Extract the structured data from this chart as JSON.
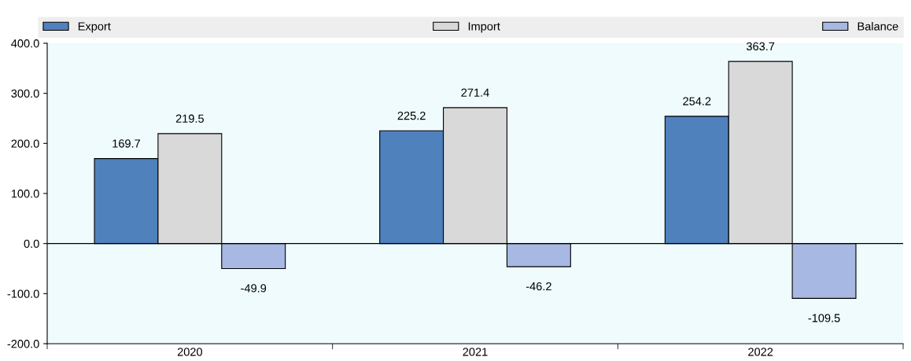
{
  "chart_data": {
    "type": "bar",
    "categories": [
      "2020",
      "2021",
      "2022"
    ],
    "series": [
      {
        "name": "Export",
        "color": "#4f81bd",
        "values": [
          169.7,
          225.2,
          254.2
        ]
      },
      {
        "name": "Import",
        "color": "#d9d9d9",
        "values": [
          219.5,
          271.4,
          363.7
        ]
      },
      {
        "name": "Balance",
        "color": "#a7b8e2",
        "values": [
          -49.9,
          -46.2,
          -109.5
        ]
      }
    ],
    "ylim": [
      -200,
      400
    ],
    "yticks": [
      {
        "value": -200,
        "label": "-200.0"
      },
      {
        "value": -100,
        "label": "-100.0"
      },
      {
        "value": 0,
        "label": "0.0"
      },
      {
        "value": 100,
        "label": "100.0"
      },
      {
        "value": 200,
        "label": "200.0"
      },
      {
        "value": 300,
        "label": "300.0"
      },
      {
        "value": 400,
        "label": "400.0"
      }
    ],
    "ref_lines": [
      {
        "axis": "y",
        "value": 0,
        "color": "#000000"
      }
    ],
    "data_labels": true,
    "grid": false,
    "legend": "top"
  }
}
